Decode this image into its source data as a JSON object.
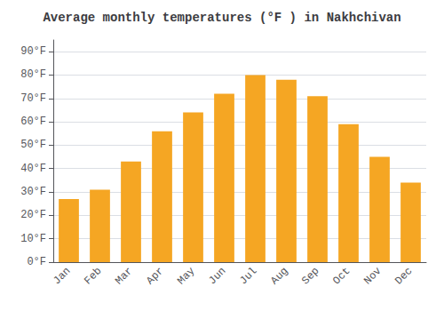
{
  "chart_data": {
    "type": "bar",
    "title": "Average monthly temperatures (°F ) in Nakhchivan",
    "categories": [
      "Jan",
      "Feb",
      "Mar",
      "Apr",
      "May",
      "Jun",
      "Jul",
      "Aug",
      "Sep",
      "Oct",
      "Nov",
      "Dec"
    ],
    "values": [
      27,
      31,
      43,
      56,
      64,
      72,
      80,
      78,
      71,
      59,
      45,
      34
    ],
    "color": "#F5A623",
    "ylim": [
      0,
      95
    ],
    "yticks": [
      {
        "value": 0,
        "label": "0°F"
      },
      {
        "value": 10,
        "label": "10°F"
      },
      {
        "value": 20,
        "label": "20°F"
      },
      {
        "value": 30,
        "label": "30°F"
      },
      {
        "value": 40,
        "label": "40°F"
      },
      {
        "value": 50,
        "label": "50°F"
      },
      {
        "value": 60,
        "label": "60°F"
      },
      {
        "value": 70,
        "label": "70°F"
      },
      {
        "value": 80,
        "label": "80°F"
      },
      {
        "value": 90,
        "label": "90°F"
      }
    ],
    "grid": true
  }
}
